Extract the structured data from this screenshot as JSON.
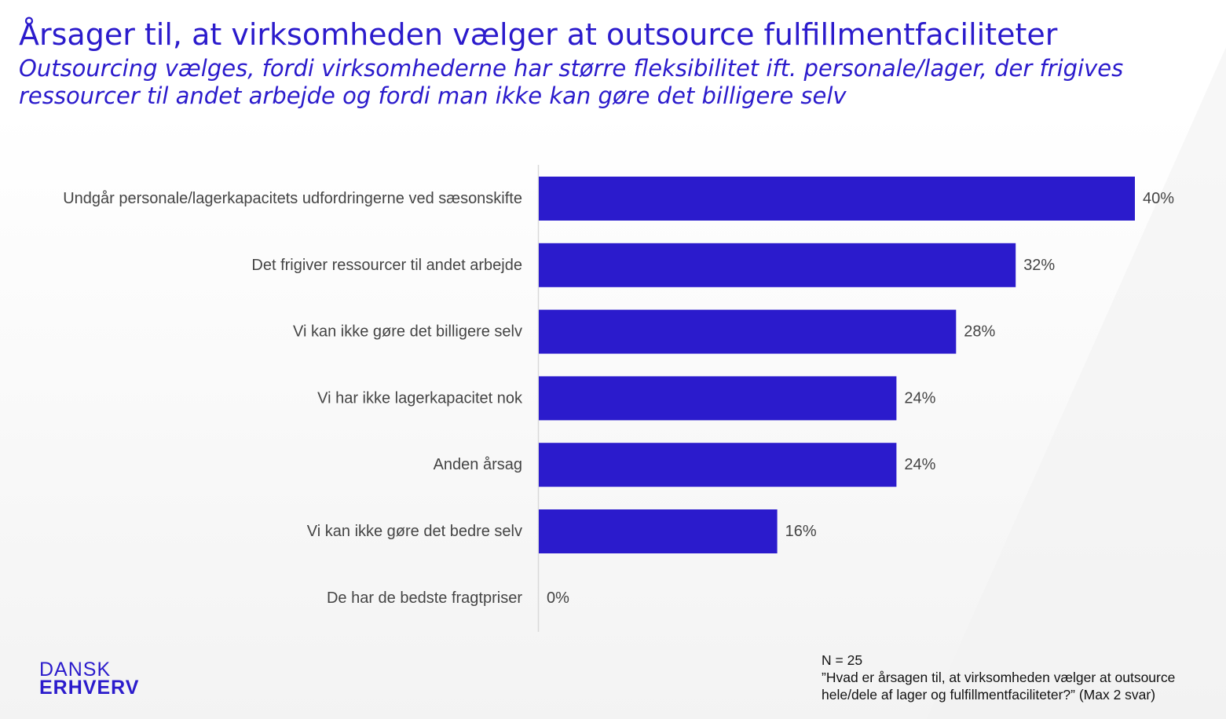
{
  "header": {
    "title": "Årsager til, at virksomheden vælger at outsource fulfillmentfaciliteter",
    "subtitle": "Outsourcing vælges, fordi virksomhederne har større fleksibilitet ift. personale/lager, der frigives ressourcer til andet arbejde og fordi man ikke kan gøre det billigere selv"
  },
  "chart_data": {
    "type": "bar",
    "orientation": "horizontal",
    "categories": [
      "Undgår personale/lagerkapacitets udfordringerne ved sæsonskifte",
      "Det frigiver ressourcer til andet arbejde",
      "Vi kan ikke gøre det billigere selv",
      "Vi har ikke lagerkapacitet nok",
      "Anden årsag",
      "Vi kan ikke gøre det bedre selv",
      "De har de bedste fragtpriser"
    ],
    "values": [
      40,
      32,
      28,
      24,
      24,
      16,
      0
    ],
    "value_labels": [
      "40%",
      "32%",
      "28%",
      "24%",
      "24%",
      "16%",
      "0%"
    ],
    "unit": "%",
    "xlim": [
      0,
      40
    ],
    "grid": false,
    "legend": "none",
    "colors": {
      "bar": "#2b1bcc",
      "axis": "#d9d9d9",
      "label": "#444444",
      "accent": "#2b1bcc"
    }
  },
  "footer": {
    "logo_line1": "DANSK",
    "logo_line2": "ERHVERV",
    "n_label": "N = 25",
    "question_line1": "”Hvad er årsagen til, at virksomheden vælger at outsource",
    "question_line2": "hele/dele af lager og fulfillmentfaciliteter?” (Max 2 svar)"
  }
}
